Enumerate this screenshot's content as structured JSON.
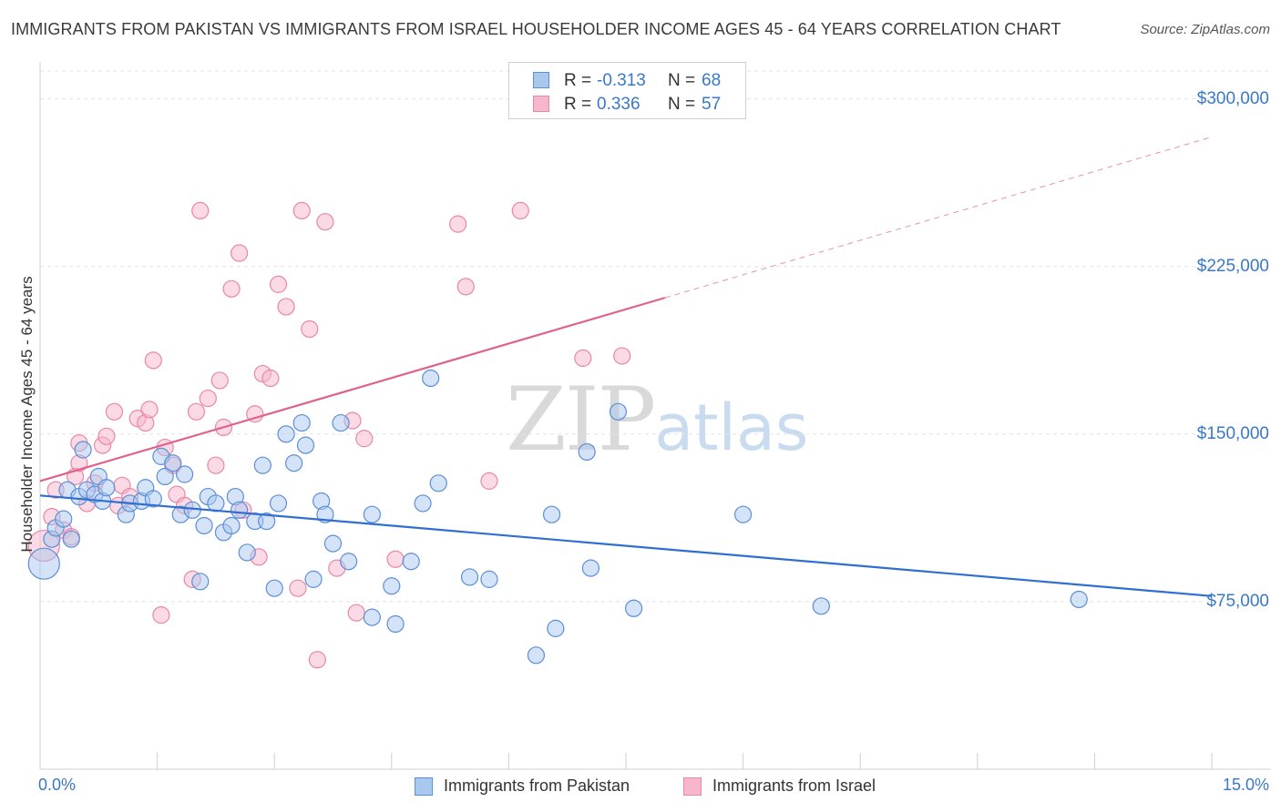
{
  "header": {
    "title": "IMMIGRANTS FROM PAKISTAN VS IMMIGRANTS FROM ISRAEL HOUSEHOLDER INCOME AGES 45 - 64 YEARS CORRELATION CHART",
    "source": "Source: ZipAtlas.com"
  },
  "watermark": {
    "zip": "ZIP",
    "atlas": "atlas"
  },
  "stats": {
    "pakistan": {
      "r_label": "R =",
      "r_value": "-0.313",
      "n_label": "N =",
      "n_value": "68",
      "color": "#a9c8f0"
    },
    "israel": {
      "r_label": "R =",
      "r_value": "0.336",
      "n_label": "N =",
      "n_value": "57",
      "color": "#f7b6cb"
    }
  },
  "legend": {
    "pakistan": "Immigrants from Pakistan",
    "israel": "Immigrants from Israel"
  },
  "colors": {
    "pakistan_fill": "#a9c8f0",
    "pakistan_stroke": "#5b8fd6",
    "pakistan_line": "#2f6fd0",
    "israel_fill": "#f7b6cb",
    "israel_stroke": "#e887a6",
    "israel_line": "#e0628c",
    "tick_label": "#3a78c6",
    "grid": "#e3e3e3"
  },
  "chart_data": {
    "type": "scatter",
    "title": "IMMIGRANTS FROM PAKISTAN VS IMMIGRANTS FROM ISRAEL HOUSEHOLDER INCOME AGES 45 - 64 YEARS CORRELATION CHART",
    "xlabel": "",
    "ylabel": "Householder Income Ages 45 - 64 years",
    "xlim": [
      0,
      15
    ],
    "ylim": [
      0,
      312500
    ],
    "x_tick_labels": [
      "0.0%",
      "15.0%"
    ],
    "y_ticks": [
      75000,
      150000,
      225000,
      300000
    ],
    "y_tick_labels": [
      "$75,000",
      "$150,000",
      "$225,000",
      "$300,000"
    ],
    "grid": true,
    "legend_position": "bottom",
    "series": [
      {
        "name": "Immigrants from Pakistan",
        "r": -0.313,
        "n": 68,
        "trend": {
          "x": [
            0,
            15
          ],
          "y": [
            122500,
            77500
          ],
          "style": "solid"
        },
        "points": [
          [
            0.05,
            92000
          ],
          [
            0.15,
            103000
          ],
          [
            0.2,
            108000
          ],
          [
            0.3,
            112000
          ],
          [
            0.4,
            103000
          ],
          [
            0.35,
            125000
          ],
          [
            0.5,
            122000
          ],
          [
            0.55,
            143000
          ],
          [
            0.6,
            125000
          ],
          [
            0.7,
            123000
          ],
          [
            0.75,
            131000
          ],
          [
            0.8,
            120000
          ],
          [
            0.85,
            126000
          ],
          [
            1.1,
            114000
          ],
          [
            1.15,
            119000
          ],
          [
            1.3,
            120000
          ],
          [
            1.35,
            126000
          ],
          [
            1.45,
            121000
          ],
          [
            1.55,
            140000
          ],
          [
            1.6,
            131000
          ],
          [
            1.7,
            137000
          ],
          [
            1.8,
            114000
          ],
          [
            1.85,
            132000
          ],
          [
            1.95,
            116000
          ],
          [
            2.05,
            84000
          ],
          [
            2.1,
            109000
          ],
          [
            2.15,
            122000
          ],
          [
            2.25,
            119000
          ],
          [
            2.35,
            106000
          ],
          [
            2.45,
            109000
          ],
          [
            2.5,
            122000
          ],
          [
            2.55,
            116000
          ],
          [
            2.65,
            97000
          ],
          [
            2.75,
            111000
          ],
          [
            2.85,
            136000
          ],
          [
            2.9,
            111000
          ],
          [
            3.0,
            81000
          ],
          [
            3.05,
            119000
          ],
          [
            3.15,
            150000
          ],
          [
            3.25,
            137000
          ],
          [
            3.35,
            155000
          ],
          [
            3.4,
            145000
          ],
          [
            3.5,
            85000
          ],
          [
            3.6,
            120000
          ],
          [
            3.65,
            114000
          ],
          [
            3.75,
            101000
          ],
          [
            3.85,
            155000
          ],
          [
            3.95,
            93000
          ],
          [
            4.25,
            114000
          ],
          [
            4.25,
            68000
          ],
          [
            4.5,
            82000
          ],
          [
            4.55,
            65000
          ],
          [
            4.75,
            93000
          ],
          [
            4.9,
            119000
          ],
          [
            5.0,
            175000
          ],
          [
            5.1,
            128000
          ],
          [
            5.5,
            86000
          ],
          [
            5.75,
            85000
          ],
          [
            6.35,
            51000
          ],
          [
            6.55,
            114000
          ],
          [
            6.6,
            63000
          ],
          [
            7.0,
            142000
          ],
          [
            7.05,
            90000
          ],
          [
            7.4,
            160000
          ],
          [
            7.6,
            72000
          ],
          [
            9.0,
            114000
          ],
          [
            10.0,
            73000
          ],
          [
            13.3,
            76000
          ]
        ]
      },
      {
        "name": "Immigrants from Israel",
        "r": 0.336,
        "n": 57,
        "trend": {
          "x": [
            0,
            8.0,
            15
          ],
          "y": [
            129000,
            211000,
            283000
          ],
          "style": "solid-then-dashed"
        },
        "points": [
          [
            0.05,
            100000
          ],
          [
            0.15,
            113000
          ],
          [
            0.2,
            125000
          ],
          [
            0.3,
            107000
          ],
          [
            0.4,
            104000
          ],
          [
            0.45,
            131000
          ],
          [
            0.5,
            137000
          ],
          [
            0.5,
            146000
          ],
          [
            0.6,
            119000
          ],
          [
            0.7,
            128000
          ],
          [
            0.8,
            145000
          ],
          [
            0.85,
            149000
          ],
          [
            0.95,
            160000
          ],
          [
            1.0,
            118000
          ],
          [
            1.05,
            127000
          ],
          [
            1.15,
            122000
          ],
          [
            1.25,
            157000
          ],
          [
            1.35,
            155000
          ],
          [
            1.4,
            161000
          ],
          [
            1.45,
            183000
          ],
          [
            1.55,
            69000
          ],
          [
            1.6,
            144000
          ],
          [
            1.7,
            136000
          ],
          [
            1.75,
            123000
          ],
          [
            1.85,
            118000
          ],
          [
            1.95,
            85000
          ],
          [
            2.0,
            160000
          ],
          [
            2.05,
            250000
          ],
          [
            2.15,
            166000
          ],
          [
            2.25,
            136000
          ],
          [
            2.3,
            174000
          ],
          [
            2.35,
            153000
          ],
          [
            2.45,
            215000
          ],
          [
            2.55,
            231000
          ],
          [
            2.6,
            116000
          ],
          [
            2.75,
            159000
          ],
          [
            2.8,
            95000
          ],
          [
            2.85,
            177000
          ],
          [
            2.95,
            175000
          ],
          [
            3.05,
            217000
          ],
          [
            3.15,
            207000
          ],
          [
            3.3,
            81000
          ],
          [
            3.35,
            250000
          ],
          [
            3.45,
            197000
          ],
          [
            3.55,
            49000
          ],
          [
            3.65,
            245000
          ],
          [
            3.8,
            90000
          ],
          [
            4.0,
            156000
          ],
          [
            4.05,
            70000
          ],
          [
            4.15,
            148000
          ],
          [
            4.55,
            94000
          ],
          [
            5.35,
            244000
          ],
          [
            5.45,
            216000
          ],
          [
            5.75,
            129000
          ],
          [
            6.15,
            250000
          ],
          [
            6.95,
            184000
          ],
          [
            7.45,
            185000
          ]
        ]
      }
    ]
  }
}
